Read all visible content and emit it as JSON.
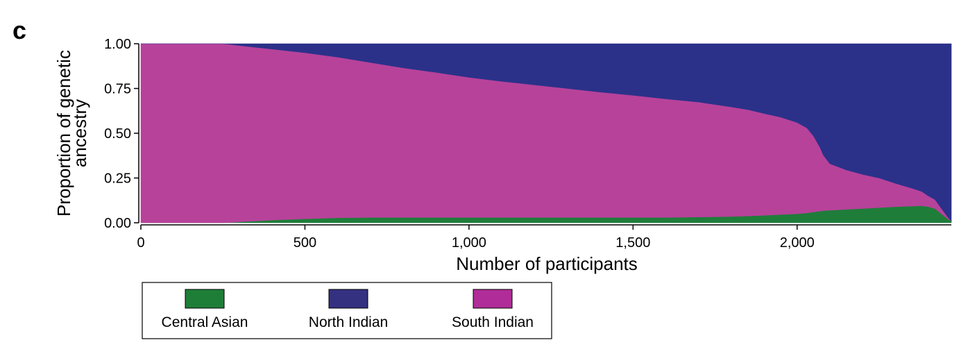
{
  "panel_label": "c",
  "chart_data": {
    "type": "area",
    "stacking": "proportion",
    "xlabel": "Number of participants",
    "ylabel_lines": [
      "Proportion of genetic",
      "ancestry"
    ],
    "xlim": [
      0,
      2470
    ],
    "ylim": [
      0,
      1
    ],
    "x_ticks": [
      0,
      500,
      1000,
      1500,
      2000
    ],
    "x_tick_labels": [
      "0",
      "500",
      "1,000",
      "1,500",
      "2,000"
    ],
    "y_ticks": [
      0,
      0.25,
      0.5,
      0.75,
      1
    ],
    "y_tick_labels": [
      "0.00",
      "0.25",
      "0.50",
      "0.75",
      "1.00"
    ],
    "grid": false,
    "legend_position": "bottom-left",
    "x": [
      0,
      100,
      200,
      250,
      280,
      300,
      350,
      400,
      500,
      600,
      700,
      800,
      900,
      1000,
      1100,
      1200,
      1300,
      1400,
      1500,
      1600,
      1700,
      1800,
      1850,
      1900,
      1950,
      2000,
      2030,
      2050,
      2070,
      2080,
      2100,
      2150,
      2200,
      2250,
      2300,
      2350,
      2380,
      2400,
      2420,
      2440,
      2460,
      2470
    ],
    "series": [
      {
        "name": "Central Asian",
        "color": "#1f7d3a",
        "values": [
          0,
          0,
          0,
          0,
          0.002,
          0.005,
          0.01,
          0.015,
          0.022,
          0.028,
          0.03,
          0.03,
          0.03,
          0.03,
          0.03,
          0.03,
          0.03,
          0.03,
          0.03,
          0.03,
          0.032,
          0.035,
          0.038,
          0.042,
          0.046,
          0.05,
          0.055,
          0.06,
          0.065,
          0.068,
          0.07,
          0.075,
          0.08,
          0.085,
          0.09,
          0.093,
          0.095,
          0.09,
          0.08,
          0.05,
          0.02,
          0.01
        ]
      },
      {
        "name": "South Indian",
        "color": "#b7429a",
        "values": [
          1,
          1,
          1,
          1,
          0.993,
          0.985,
          0.97,
          0.955,
          0.928,
          0.897,
          0.865,
          0.835,
          0.81,
          0.782,
          0.76,
          0.74,
          0.72,
          0.7,
          0.682,
          0.662,
          0.642,
          0.612,
          0.594,
          0.568,
          0.544,
          0.51,
          0.475,
          0.425,
          0.355,
          0.31,
          0.26,
          0.22,
          0.19,
          0.165,
          0.13,
          0.1,
          0.08,
          0.06,
          0.05,
          0.03,
          0.01,
          0
        ]
      },
      {
        "name": "North Indian",
        "color": "#2b3189",
        "values": [
          0,
          0,
          0,
          0,
          0.005,
          0.01,
          0.02,
          0.03,
          0.05,
          0.075,
          0.105,
          0.135,
          0.16,
          0.188,
          0.21,
          0.23,
          0.25,
          0.27,
          0.288,
          0.308,
          0.326,
          0.353,
          0.368,
          0.39,
          0.41,
          0.44,
          0.47,
          0.515,
          0.58,
          0.622,
          0.67,
          0.705,
          0.73,
          0.75,
          0.78,
          0.807,
          0.825,
          0.85,
          0.87,
          0.92,
          0.97,
          0.99
        ]
      }
    ]
  },
  "legend": {
    "items": [
      {
        "label": "Central Asian",
        "color": "#1f7d3a",
        "swatch": "#1e7e38"
      },
      {
        "label": "North Indian",
        "color": "#2b3189",
        "swatch": "#343180"
      },
      {
        "label": "South Indian",
        "color": "#b7429a",
        "swatch": "#b02c98"
      }
    ]
  }
}
